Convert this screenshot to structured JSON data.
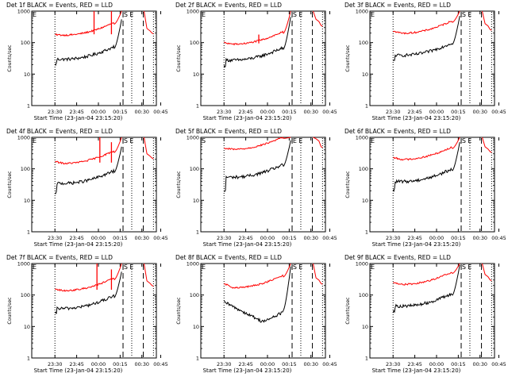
{
  "figure": {
    "background": "#ffffff",
    "colors": {
      "events": "#000000",
      "lld": "#ff0000",
      "frame": "#000000"
    }
  },
  "chart_data": [
    {
      "type": "line",
      "title": "Det 1f BLACK = Events, RED = LLD",
      "xlabel": "Start Time (23-Jan-04 23:15:20)",
      "ylabel": "Counts/sec",
      "yscale": "log",
      "ylim": [
        1,
        1000
      ],
      "yticks": [
        "1",
        "10",
        "100",
        "1000"
      ],
      "xtick_labels": [
        "23:30",
        "23:45",
        "00:00",
        "00:15",
        "00:30",
        "00:45"
      ],
      "xlim_minutes": [
        0,
        86
      ],
      "x_units": "minutes after 23:15:20",
      "marker_labels": [
        "E",
        "S",
        "E"
      ],
      "events_profile": "nominal",
      "series": [
        {
          "name": "Events",
          "color": "#000000",
          "base_start": 20,
          "base_min": 30,
          "peak": 550,
          "after": null
        },
        {
          "name": "LLD",
          "color": "#ff0000",
          "base_start": 180,
          "base_min": 175,
          "peak": 1000,
          "after": [
            280,
            200
          ],
          "spikes": [
            {
              "x": 43,
              "y": 1000
            },
            {
              "x": 55,
              "y": 1000
            }
          ]
        }
      ],
      "vlines": [
        {
          "x": 16,
          "style": "dotted"
        },
        {
          "x": 63,
          "style": "dashed"
        },
        {
          "x": 69,
          "style": "dotted"
        },
        {
          "x": 77,
          "style": "dashed"
        },
        {
          "x": 84,
          "style": "dotted"
        }
      ]
    },
    {
      "type": "line",
      "title": "Det 2f BLACK = Events, RED = LLD",
      "xlabel": "Start Time (23-Jan-04 23:15:20)",
      "ylabel": "Counts/sec",
      "yscale": "log",
      "ylim": [
        1,
        1000
      ],
      "yticks": [
        "1",
        "10",
        "100",
        "1000"
      ],
      "xtick_labels": [
        "23:30",
        "23:45",
        "00:00",
        "00:15",
        "00:30",
        "00:45"
      ],
      "xlim_minutes": [
        0,
        86
      ],
      "x_units": "minutes after 23:15:20",
      "marker_labels": [
        "E",
        "S",
        "E"
      ],
      "events_profile": "nominal",
      "series": [
        {
          "name": "Events",
          "color": "#000000",
          "base_start": 18,
          "base_min": 28,
          "peak": 650,
          "after": null
        },
        {
          "name": "LLD",
          "color": "#ff0000",
          "base_start": 100,
          "base_min": 90,
          "peak": 1000,
          "after": [
            550,
            350
          ],
          "spikes": [
            {
              "x": 40,
              "y": 180
            }
          ]
        }
      ],
      "vlines": [
        {
          "x": 16,
          "style": "dotted"
        },
        {
          "x": 63,
          "style": "dashed"
        },
        {
          "x": 69,
          "style": "dotted"
        },
        {
          "x": 77,
          "style": "dashed"
        },
        {
          "x": 84,
          "style": "dotted"
        }
      ]
    },
    {
      "type": "line",
      "title": "Det 3f BLACK = Events, RED = LLD",
      "xlabel": "Start Time (23-Jan-04 23:15:20)",
      "ylabel": "Counts/sec",
      "yscale": "log",
      "ylim": [
        1,
        1000
      ],
      "yticks": [
        "1",
        "10",
        "100",
        "1000"
      ],
      "xtick_labels": [
        "23:30",
        "23:45",
        "00:00",
        "00:15",
        "00:30",
        "00:45"
      ],
      "xlim_minutes": [
        0,
        86
      ],
      "x_units": "minutes after 23:15:20",
      "marker_labels": [
        "E",
        "S",
        "E"
      ],
      "events_profile": "nominal",
      "series": [
        {
          "name": "Events",
          "color": "#000000",
          "base_start": 25,
          "base_min": 40,
          "peak": 700,
          "after": null
        },
        {
          "name": "LLD",
          "color": "#ff0000",
          "base_start": 230,
          "base_min": 200,
          "peak": 1000,
          "after": [
            400,
            260
          ],
          "spikes": []
        }
      ],
      "vlines": [
        {
          "x": 16,
          "style": "dotted"
        },
        {
          "x": 63,
          "style": "dashed"
        },
        {
          "x": 69,
          "style": "dotted"
        },
        {
          "x": 77,
          "style": "dashed"
        },
        {
          "x": 84,
          "style": "dotted"
        }
      ]
    },
    {
      "type": "line",
      "title": "Det 4f BLACK = Events, RED = LLD",
      "xlabel": "Start Time (23-Jan-04 23:15:20)",
      "ylabel": "Counts/sec",
      "yscale": "log",
      "ylim": [
        1,
        1000
      ],
      "yticks": [
        "1",
        "10",
        "100",
        "1000"
      ],
      "xtick_labels": [
        "23:30",
        "23:45",
        "00:00",
        "00:15",
        "00:30",
        "00:45"
      ],
      "xlim_minutes": [
        0,
        86
      ],
      "x_units": "minutes after 23:15:20",
      "marker_labels": [
        "E",
        "S",
        "E"
      ],
      "events_profile": "nominal",
      "series": [
        {
          "name": "Events",
          "color": "#000000",
          "base_start": 15,
          "base_min": 35,
          "peak": 500,
          "after": null
        },
        {
          "name": "LLD",
          "color": "#ff0000",
          "base_start": 170,
          "base_min": 150,
          "peak": 1000,
          "after": [
            300,
            220
          ],
          "spikes": [
            {
              "x": 47,
              "y": 1000
            },
            {
              "x": 55,
              "y": 700
            }
          ]
        }
      ],
      "vlines": [
        {
          "x": 16,
          "style": "dotted"
        },
        {
          "x": 63,
          "style": "dashed"
        },
        {
          "x": 69,
          "style": "dotted"
        },
        {
          "x": 77,
          "style": "dashed"
        },
        {
          "x": 84,
          "style": "dotted"
        }
      ]
    },
    {
      "type": "line",
      "title": "Det 5f BLACK = Events, RED = LLD",
      "xlabel": "Start Time (23-Jan-04 23:15:20)",
      "ylabel": "Counts/sec",
      "yscale": "log",
      "ylim": [
        1,
        1000
      ],
      "yticks": [
        "1",
        "10",
        "100",
        "1000"
      ],
      "xtick_labels": [
        "23:30",
        "23:45",
        "00:00",
        "00:15",
        "00:30",
        "00:45"
      ],
      "xlim_minutes": [
        0,
        86
      ],
      "x_units": "minutes after 23:15:20",
      "marker_labels": [
        "S",
        "E",
        "E"
      ],
      "events_profile": "nominal",
      "series": [
        {
          "name": "Events",
          "color": "#000000",
          "base_start": 18,
          "base_min": 55,
          "peak": 800,
          "after": null
        },
        {
          "name": "LLD",
          "color": "#ff0000",
          "base_start": 450,
          "base_min": 420,
          "peak": 1000,
          "after": [
            900,
            500
          ],
          "spikes": []
        }
      ],
      "vlines": [
        {
          "x": 16,
          "style": "dotted"
        },
        {
          "x": 63,
          "style": "dashed"
        },
        {
          "x": 69,
          "style": "dotted"
        },
        {
          "x": 77,
          "style": "dashed"
        },
        {
          "x": 84,
          "style": "dotted"
        }
      ]
    },
    {
      "type": "line",
      "title": "Det 6f BLACK = Events, RED = LLD",
      "xlabel": "Start Time (23-Jan-04 23:15:20)",
      "ylabel": "Counts/sec",
      "yscale": "log",
      "ylim": [
        1,
        1000
      ],
      "yticks": [
        "1",
        "10",
        "100",
        "1000"
      ],
      "xtick_labels": [
        "23:30",
        "23:45",
        "00:00",
        "00:15",
        "00:30",
        "00:45"
      ],
      "xlim_minutes": [
        0,
        86
      ],
      "x_units": "minutes after 23:15:20",
      "marker_labels": [
        "E",
        "S",
        "E"
      ],
      "events_profile": "nominal",
      "series": [
        {
          "name": "Events",
          "color": "#000000",
          "base_start": 20,
          "base_min": 40,
          "peak": 700,
          "after": null
        },
        {
          "name": "LLD",
          "color": "#ff0000",
          "base_start": 230,
          "base_min": 200,
          "peak": 1000,
          "after": [
            500,
            350
          ],
          "spikes": []
        }
      ],
      "vlines": [
        {
          "x": 16,
          "style": "dotted"
        },
        {
          "x": 63,
          "style": "dashed"
        },
        {
          "x": 69,
          "style": "dotted"
        },
        {
          "x": 77,
          "style": "dashed"
        },
        {
          "x": 84,
          "style": "dotted"
        }
      ]
    },
    {
      "type": "line",
      "title": "Det 7f BLACK = Events, RED = LLD",
      "xlabel": "Start Time (23-Jan-04 23:15:20)",
      "ylabel": "Counts/sec",
      "yscale": "log",
      "ylim": [
        1,
        1000
      ],
      "yticks": [
        "1",
        "10",
        "100",
        "1000"
      ],
      "xtick_labels": [
        "23:30",
        "23:45",
        "00:00",
        "00:15",
        "00:30",
        "00:45"
      ],
      "xlim_minutes": [
        0,
        86
      ],
      "x_units": "minutes after 23:15:20",
      "marker_labels": [
        "E",
        "S",
        "E"
      ],
      "events_profile": "nominal",
      "series": [
        {
          "name": "Events",
          "color": "#000000",
          "base_start": 25,
          "base_min": 38,
          "peak": 550,
          "after": null
        },
        {
          "name": "LLD",
          "color": "#ff0000",
          "base_start": 150,
          "base_min": 140,
          "peak": 1000,
          "after": [
            280,
            200
          ],
          "spikes": [
            {
              "x": 45,
              "y": 1000
            },
            {
              "x": 55,
              "y": 650
            }
          ]
        }
      ],
      "vlines": [
        {
          "x": 16,
          "style": "dotted"
        },
        {
          "x": 63,
          "style": "dashed"
        },
        {
          "x": 69,
          "style": "dotted"
        },
        {
          "x": 77,
          "style": "dashed"
        },
        {
          "x": 84,
          "style": "dotted"
        }
      ]
    },
    {
      "type": "line",
      "title": "Det 8f BLACK = Events, RED = LLD",
      "xlabel": "Start Time (23-Jan-04 23:15:20)",
      "ylabel": "Counts/sec",
      "yscale": "log",
      "ylim": [
        1,
        1000
      ],
      "yticks": [
        "1",
        "10",
        "100",
        "1000"
      ],
      "xtick_labels": [
        "23:30",
        "23:45",
        "00:00",
        "00:15",
        "00:30",
        "00:45"
      ],
      "xlim_minutes": [
        0,
        86
      ],
      "x_units": "minutes after 23:15:20",
      "marker_labels": [
        "E",
        "S",
        "E"
      ],
      "events_profile": "dip",
      "series": [
        {
          "name": "Events",
          "color": "#000000",
          "base_start": 60,
          "base_min": 15,
          "peak": 800,
          "after": null
        },
        {
          "name": "LLD",
          "color": "#ff0000",
          "base_start": 230,
          "base_min": 170,
          "peak": 1000,
          "after": [
            350,
            230
          ],
          "spikes": []
        }
      ],
      "vlines": [
        {
          "x": 16,
          "style": "dotted"
        },
        {
          "x": 63,
          "style": "dashed"
        },
        {
          "x": 69,
          "style": "dotted"
        },
        {
          "x": 77,
          "style": "dashed"
        },
        {
          "x": 84,
          "style": "dotted"
        }
      ]
    },
    {
      "type": "line",
      "title": "Det 9f BLACK = Events, RED = LLD",
      "xlabel": "Start Time (23-Jan-04 23:15:20)",
      "ylabel": "Counts/sec",
      "yscale": "log",
      "ylim": [
        1,
        1000
      ],
      "yticks": [
        "1",
        "10",
        "100",
        "1000"
      ],
      "xtick_labels": [
        "23:30",
        "23:45",
        "00:00",
        "00:15",
        "00:30",
        "00:45"
      ],
      "xlim_minutes": [
        0,
        86
      ],
      "x_units": "minutes after 23:15:20",
      "marker_labels": [
        "E",
        "S",
        "E"
      ],
      "events_profile": "nominal",
      "series": [
        {
          "name": "Events",
          "color": "#000000",
          "base_start": 30,
          "base_min": 45,
          "peak": 900,
          "after": null
        },
        {
          "name": "LLD",
          "color": "#ff0000",
          "base_start": 250,
          "base_min": 220,
          "peak": 1000,
          "after": [
            450,
            300
          ],
          "spikes": []
        }
      ],
      "vlines": [
        {
          "x": 16,
          "style": "dotted"
        },
        {
          "x": 63,
          "style": "dashed"
        },
        {
          "x": 69,
          "style": "dotted"
        },
        {
          "x": 77,
          "style": "dashed"
        },
        {
          "x": 84,
          "style": "dotted"
        }
      ]
    }
  ]
}
